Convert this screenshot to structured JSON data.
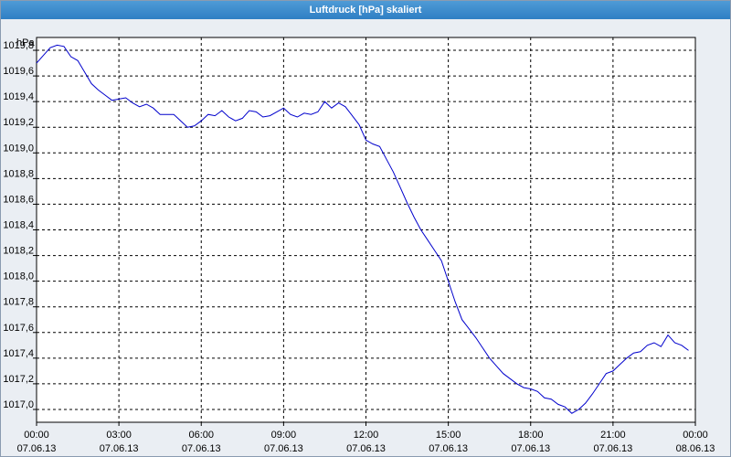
{
  "window": {
    "title": "Luftdruck [hPa] skaliert"
  },
  "chart_data": {
    "type": "line",
    "title": "Luftdruck [hPa] skaliert",
    "ylabel": "hPa",
    "xlabel": "",
    "ylim": [
      1016.9,
      1019.9
    ],
    "xlim": [
      0,
      24
    ],
    "grid": true,
    "line_color": "#0000cc",
    "yticks": [
      1017.0,
      1017.2,
      1017.4,
      1017.6,
      1017.8,
      1018.0,
      1018.2,
      1018.4,
      1018.6,
      1018.8,
      1019.0,
      1019.2,
      1019.4,
      1019.6,
      1019.8
    ],
    "ytick_labels": [
      "1017,0",
      "1017,2",
      "1017,4",
      "1017,6",
      "1017,8",
      "1018,0",
      "1018,2",
      "1018,4",
      "1018,6",
      "1018,8",
      "1019,0",
      "1019,2",
      "1019,4",
      "1019,6",
      "1019,8"
    ],
    "xticks": [
      0,
      3,
      6,
      9,
      12,
      15,
      18,
      21,
      24
    ],
    "xtick_labels": [
      [
        "00:00",
        "07.06.13"
      ],
      [
        "03:00",
        "07.06.13"
      ],
      [
        "06:00",
        "07.06.13"
      ],
      [
        "09:00",
        "07.06.13"
      ],
      [
        "12:00",
        "07.06.13"
      ],
      [
        "15:00",
        "07.06.13"
      ],
      [
        "18:00",
        "07.06.13"
      ],
      [
        "21:00",
        "07.06.13"
      ],
      [
        "00:00",
        "08.06.13"
      ]
    ],
    "series": [
      {
        "x": [
          0.0,
          0.25,
          0.5,
          0.75,
          1.0,
          1.25,
          1.5,
          1.75,
          2.0,
          2.25,
          2.5,
          2.75,
          3.0,
          3.25,
          3.5,
          3.75,
          4.0,
          4.25,
          4.5,
          4.75,
          5.0,
          5.25,
          5.5,
          5.75,
          6.0,
          6.25,
          6.5,
          6.75,
          7.0,
          7.25,
          7.5,
          7.75,
          8.0,
          8.25,
          8.5,
          8.75,
          9.0,
          9.25,
          9.5,
          9.75,
          10.0,
          10.25,
          10.5,
          10.75,
          11.0,
          11.25,
          11.5,
          11.75,
          12.0,
          12.25,
          12.5,
          12.75,
          13.0,
          13.25,
          13.5,
          13.75,
          14.0,
          14.25,
          14.5,
          14.75,
          15.0,
          15.25,
          15.5,
          15.75,
          16.0,
          16.25,
          16.5,
          16.75,
          17.0,
          17.25,
          17.5,
          17.75,
          18.0,
          18.25,
          18.5,
          18.75,
          19.0,
          19.25,
          19.5,
          19.75,
          20.0,
          20.25,
          20.5,
          20.75,
          21.0,
          21.25,
          21.5,
          21.75,
          22.0,
          22.25,
          22.5,
          22.75,
          23.0,
          23.25,
          23.5,
          23.75
        ],
        "y": [
          1019.7,
          1019.76,
          1019.82,
          1019.84,
          1019.83,
          1019.75,
          1019.72,
          1019.63,
          1019.54,
          1019.49,
          1019.45,
          1019.41,
          1019.42,
          1019.43,
          1019.39,
          1019.36,
          1019.38,
          1019.35,
          1019.3,
          1019.3,
          1019.3,
          1019.25,
          1019.2,
          1019.21,
          1019.25,
          1019.3,
          1019.29,
          1019.33,
          1019.28,
          1019.25,
          1019.27,
          1019.33,
          1019.32,
          1019.28,
          1019.29,
          1019.32,
          1019.35,
          1019.3,
          1019.28,
          1019.31,
          1019.3,
          1019.32,
          1019.4,
          1019.35,
          1019.39,
          1019.36,
          1019.29,
          1019.22,
          1019.1,
          1019.07,
          1019.05,
          1018.95,
          1018.85,
          1018.73,
          1018.61,
          1018.5,
          1018.4,
          1018.32,
          1018.24,
          1018.16,
          1018.0,
          1017.84,
          1017.7,
          1017.63,
          1017.56,
          1017.48,
          1017.4,
          1017.34,
          1017.28,
          1017.24,
          1017.2,
          1017.17,
          1017.16,
          1017.14,
          1017.09,
          1017.08,
          1017.04,
          1017.02,
          1016.97,
          1017.0,
          1017.05,
          1017.12,
          1017.2,
          1017.28,
          1017.3,
          1017.35,
          1017.4,
          1017.44,
          1017.45,
          1017.5,
          1017.52,
          1017.49,
          1017.58,
          1017.52,
          1017.5,
          1017.46
        ]
      }
    ]
  }
}
